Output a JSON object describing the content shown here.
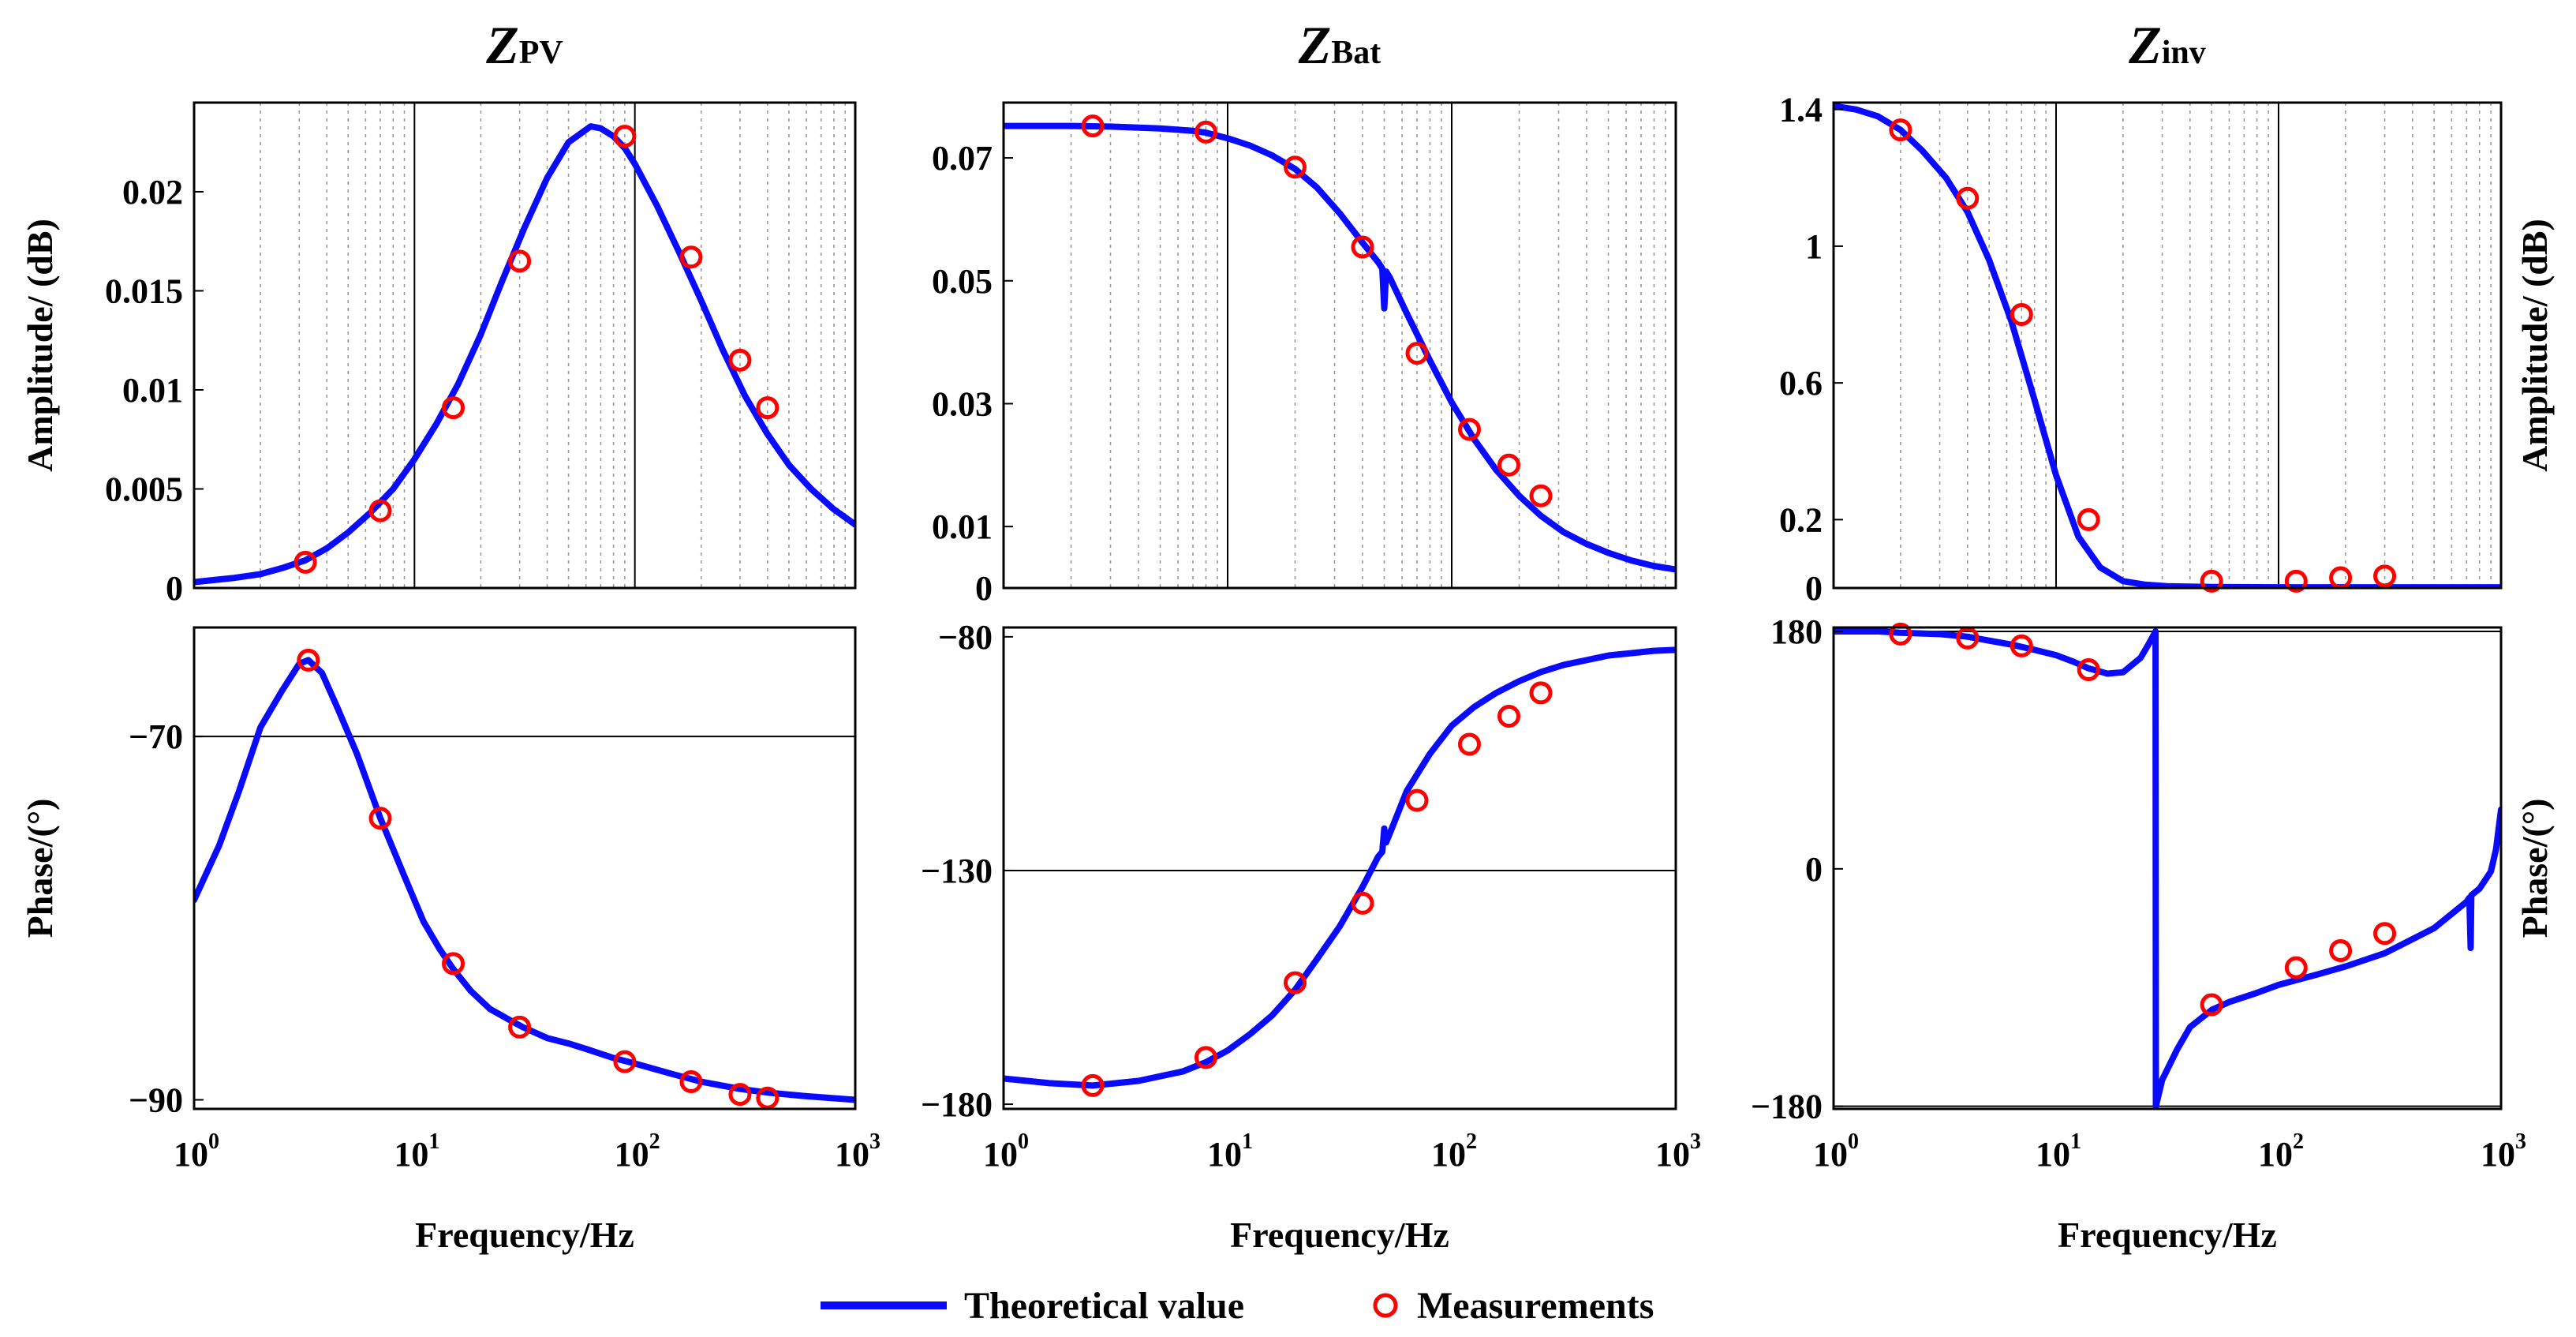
{
  "chart_data": [
    {
      "type": "line",
      "panel": "ZPV-amplitude",
      "title": "ZPV",
      "title_main": "Z",
      "title_sub": "PV",
      "xscale": "log",
      "xlim": [
        1,
        1000
      ],
      "ylim": [
        0,
        0.0245
      ],
      "yticks": [
        0,
        0.005,
        0.01,
        0.015,
        0.02
      ],
      "ytick_labels": [
        "0",
        "0.005",
        "0.01",
        "0.015",
        "0.02"
      ],
      "ylabel": "Amplitude/ (dB)",
      "ylabel_side": "left",
      "grid": "log-minor",
      "series": [
        {
          "name": "Theoretical value",
          "x": [
            1,
            1.5,
            2,
            2.5,
            3.2,
            4,
            5,
            6.3,
            8,
            10,
            12.6,
            15.8,
            20,
            25,
            31.6,
            40,
            50,
            63,
            70,
            80,
            90,
            100,
            126,
            158,
            200,
            251,
            316,
            398,
            501,
            631,
            794,
            1000
          ],
          "y": [
            0.0003,
            0.0005,
            0.0007,
            0.001,
            0.0014,
            0.002,
            0.0028,
            0.0038,
            0.005,
            0.0065,
            0.0083,
            0.0103,
            0.0128,
            0.0155,
            0.0182,
            0.0207,
            0.0225,
            0.0233,
            0.0232,
            0.0228,
            0.0222,
            0.0214,
            0.0193,
            0.017,
            0.0145,
            0.012,
            0.0097,
            0.0078,
            0.0062,
            0.005,
            0.004,
            0.0032
          ]
        },
        {
          "name": "Measurements",
          "x": [
            3.2,
            7,
            15,
            30,
            90,
            180,
            300,
            400
          ],
          "y": [
            0.0013,
            0.0039,
            0.0091,
            0.0165,
            0.0228,
            0.0167,
            0.0115,
            0.0091
          ]
        }
      ]
    },
    {
      "type": "line",
      "panel": "ZBat-amplitude",
      "title": "ZBat",
      "title_main": "Z",
      "title_sub": "Bat",
      "xscale": "log",
      "xlim": [
        1,
        1000
      ],
      "ylim": [
        0,
        0.079
      ],
      "yticks": [
        0,
        0.01,
        0.03,
        0.05,
        0.07
      ],
      "ytick_labels": [
        "0",
        "0.01",
        "0.03",
        "0.05",
        "0.07"
      ],
      "ylabel": "",
      "grid": "log-minor",
      "series": [
        {
          "name": "Theoretical value",
          "x": [
            1,
            2,
            3,
            5,
            7,
            8,
            10,
            12.6,
            15.8,
            20,
            25,
            31.6,
            40,
            47,
            49,
            50,
            51,
            53,
            63,
            80,
            100,
            126,
            158,
            200,
            251,
            316,
            398,
            501,
            631,
            794,
            1000
          ],
          "y": [
            0.0752,
            0.0752,
            0.0751,
            0.0748,
            0.0744,
            0.0741,
            0.0732,
            0.072,
            0.0704,
            0.0682,
            0.0652,
            0.061,
            0.0562,
            0.053,
            0.052,
            0.0455,
            0.0515,
            0.0505,
            0.0447,
            0.037,
            0.0302,
            0.0242,
            0.0192,
            0.015,
            0.0117,
            0.0091,
            0.0072,
            0.0057,
            0.0045,
            0.0036,
            0.003
          ]
        },
        {
          "name": "Measurements",
          "x": [
            2.5,
            8,
            20,
            40,
            70,
            120,
            180,
            250
          ],
          "y": [
            0.0752,
            0.0742,
            0.0685,
            0.0555,
            0.0382,
            0.0258,
            0.02,
            0.015
          ]
        }
      ]
    },
    {
      "type": "line",
      "panel": "Zinv-amplitude",
      "title": "Zinv",
      "title_main": "Z",
      "title_sub": "inv",
      "xscale": "log",
      "xlim": [
        1,
        1000
      ],
      "ylim": [
        0,
        1.42
      ],
      "yticks": [
        0,
        0.2,
        0.6,
        1,
        1.4
      ],
      "ytick_labels": [
        "0",
        "0.2",
        "0.6",
        "1",
        "1.4"
      ],
      "ylabel": "Amplitude/ (dB)",
      "ylabel_side": "right",
      "grid": "log-minor",
      "series": [
        {
          "name": "Theoretical value",
          "x": [
            1,
            1.26,
            1.58,
            2,
            2.5,
            3.2,
            4,
            5,
            6.3,
            8,
            10,
            12.6,
            15.8,
            20,
            25,
            31.6,
            50,
            100,
            200,
            500,
            1000
          ],
          "y": [
            1.41,
            1.4,
            1.38,
            1.34,
            1.28,
            1.2,
            1.1,
            0.96,
            0.78,
            0.55,
            0.33,
            0.15,
            0.06,
            0.02,
            0.01,
            0.005,
            0.003,
            0.002,
            0.002,
            0.002,
            0.002
          ]
        },
        {
          "name": "Measurements",
          "x": [
            2,
            4,
            7,
            14,
            50,
            120,
            190,
            300
          ],
          "y": [
            1.34,
            1.14,
            0.8,
            0.2,
            0.02,
            0.02,
            0.03,
            0.035
          ]
        }
      ]
    },
    {
      "type": "line",
      "panel": "ZPV-phase",
      "xscale": "log",
      "xlim": [
        1,
        1000
      ],
      "ylim": [
        -90.5,
        -64
      ],
      "yticks": [
        -90,
        -70
      ],
      "ytick_labels": [
        "−90",
        "−70"
      ],
      "ylabel": "Phase/(°)",
      "ylabel_side": "left",
      "xlabel": "Frequency/Hz",
      "xticks": [
        1,
        10,
        100,
        1000
      ],
      "xtick_labels": [
        {
          "base": "10",
          "exp": "0"
        },
        {
          "base": "10",
          "exp": "1"
        },
        {
          "base": "10",
          "exp": "2"
        },
        {
          "base": "10",
          "exp": "3"
        }
      ],
      "hlines": [
        -70
      ],
      "series": [
        {
          "name": "Theoretical value",
          "x": [
            1,
            1.3,
            1.6,
            2,
            2.5,
            3,
            3.3,
            3.8,
            4.5,
            5.5,
            7,
            9,
            11,
            13,
            15,
            18,
            22,
            27,
            31,
            40,
            50,
            60,
            80,
            100,
            150,
            200,
            300,
            400,
            600,
            1000
          ],
          "y": [
            -79,
            -76,
            -73,
            -69.5,
            -67.5,
            -66,
            -65.8,
            -66.5,
            -68.5,
            -71,
            -74.5,
            -77.7,
            -80.2,
            -81.7,
            -82.8,
            -84,
            -85,
            -85.6,
            -86,
            -86.6,
            -86.9,
            -87.2,
            -87.7,
            -88,
            -88.6,
            -89,
            -89.4,
            -89.6,
            -89.8,
            -90
          ]
        },
        {
          "name": "Measurements",
          "x": [
            3.3,
            7,
            15,
            30,
            90,
            180,
            300,
            400
          ],
          "y": [
            -65.8,
            -74.5,
            -82.5,
            -86,
            -87.9,
            -89,
            -89.7,
            -89.9
          ]
        }
      ]
    },
    {
      "type": "line",
      "panel": "ZBat-phase",
      "xscale": "log",
      "xlim": [
        1,
        1000
      ],
      "ylim": [
        -181,
        -78
      ],
      "yticks": [
        -180,
        -130,
        -80
      ],
      "ytick_labels": [
        "−180",
        "−130",
        "−80"
      ],
      "ylabel": "",
      "xlabel": "Frequency/Hz",
      "xticks": [
        1,
        10,
        100,
        1000
      ],
      "xtick_labels": [
        {
          "base": "10",
          "exp": "0"
        },
        {
          "base": "10",
          "exp": "1"
        },
        {
          "base": "10",
          "exp": "2"
        },
        {
          "base": "10",
          "exp": "3"
        }
      ],
      "hlines": [
        -130
      ],
      "series": [
        {
          "name": "Theoretical value",
          "x": [
            1,
            1.6,
            2.5,
            4,
            6.3,
            8,
            10,
            12.6,
            15.8,
            20,
            25,
            31.6,
            40,
            47,
            49,
            50,
            51,
            53,
            63,
            80,
            100,
            126,
            158,
            200,
            251,
            316,
            398,
            501,
            631,
            794,
            1000
          ],
          "y": [
            -174.5,
            -175.5,
            -176,
            -175,
            -173,
            -171,
            -168.5,
            -165,
            -161,
            -155.5,
            -149,
            -142,
            -133.5,
            -127,
            -126,
            -121,
            -124,
            -122,
            -113,
            -105,
            -99,
            -95,
            -92,
            -89.5,
            -87.5,
            -86,
            -85,
            -84,
            -83.5,
            -83,
            -82.8
          ]
        },
        {
          "name": "Measurements",
          "x": [
            2.5,
            8,
            20,
            40,
            70,
            120,
            180,
            250
          ],
          "y": [
            -176,
            -170,
            -154,
            -137,
            -115,
            -103,
            -97,
            -92
          ]
        }
      ]
    },
    {
      "type": "line",
      "panel": "Zinv-phase",
      "xscale": "log",
      "xlim": [
        1,
        1000
      ],
      "ylim": [
        -182,
        183
      ],
      "yticks": [
        -180,
        0,
        180
      ],
      "ytick_labels": [
        "−180",
        "0",
        "180"
      ],
      "ylabel": "Phase/(°)",
      "ylabel_side": "right",
      "xlabel": "Frequency/Hz",
      "xticks": [
        1,
        10,
        100,
        1000
      ],
      "xtick_labels": [
        {
          "base": "10",
          "exp": "0"
        },
        {
          "base": "10",
          "exp": "1"
        },
        {
          "base": "10",
          "exp": "2"
        },
        {
          "base": "10",
          "exp": "3"
        }
      ],
      "hlines": [
        -180,
        180
      ],
      "series": [
        {
          "name": "Theoretical value",
          "x": [
            1,
            1.6,
            2,
            3,
            4,
            5,
            6.3,
            8,
            10,
            12,
            14,
            17,
            20,
            24,
            26,
            28,
            28.1,
            30,
            35,
            40,
            50,
            60,
            80,
            100,
            150,
            200,
            300,
            500,
            700,
            720,
            730,
            735,
            800,
            900,
            950,
            1000
          ],
          "y": [
            180,
            180,
            179,
            178,
            176,
            173,
            170,
            166,
            162,
            157,
            152,
            148,
            149,
            160,
            170,
            180,
            -180,
            -160,
            -137,
            -120,
            -107,
            -101,
            -94,
            -88,
            -80,
            -74,
            -64,
            -45,
            -25,
            -22,
            -60,
            -20,
            -15,
            -2,
            15,
            45
          ]
        },
        {
          "name": "Measurements",
          "x": [
            2,
            4,
            7,
            14,
            50,
            120,
            190,
            300
          ],
          "y": [
            178,
            175,
            169,
            151,
            -103,
            -75,
            -62,
            -49
          ]
        }
      ]
    }
  ],
  "legend": {
    "line_label": "Theoretical value",
    "marker_label": "Measurements",
    "placement": "bottom-center"
  },
  "colors": {
    "line": "#0a0aff",
    "marker": "#ff0000",
    "grid_major": "#000000",
    "grid_minor": "#999999",
    "axis": "#000000"
  }
}
